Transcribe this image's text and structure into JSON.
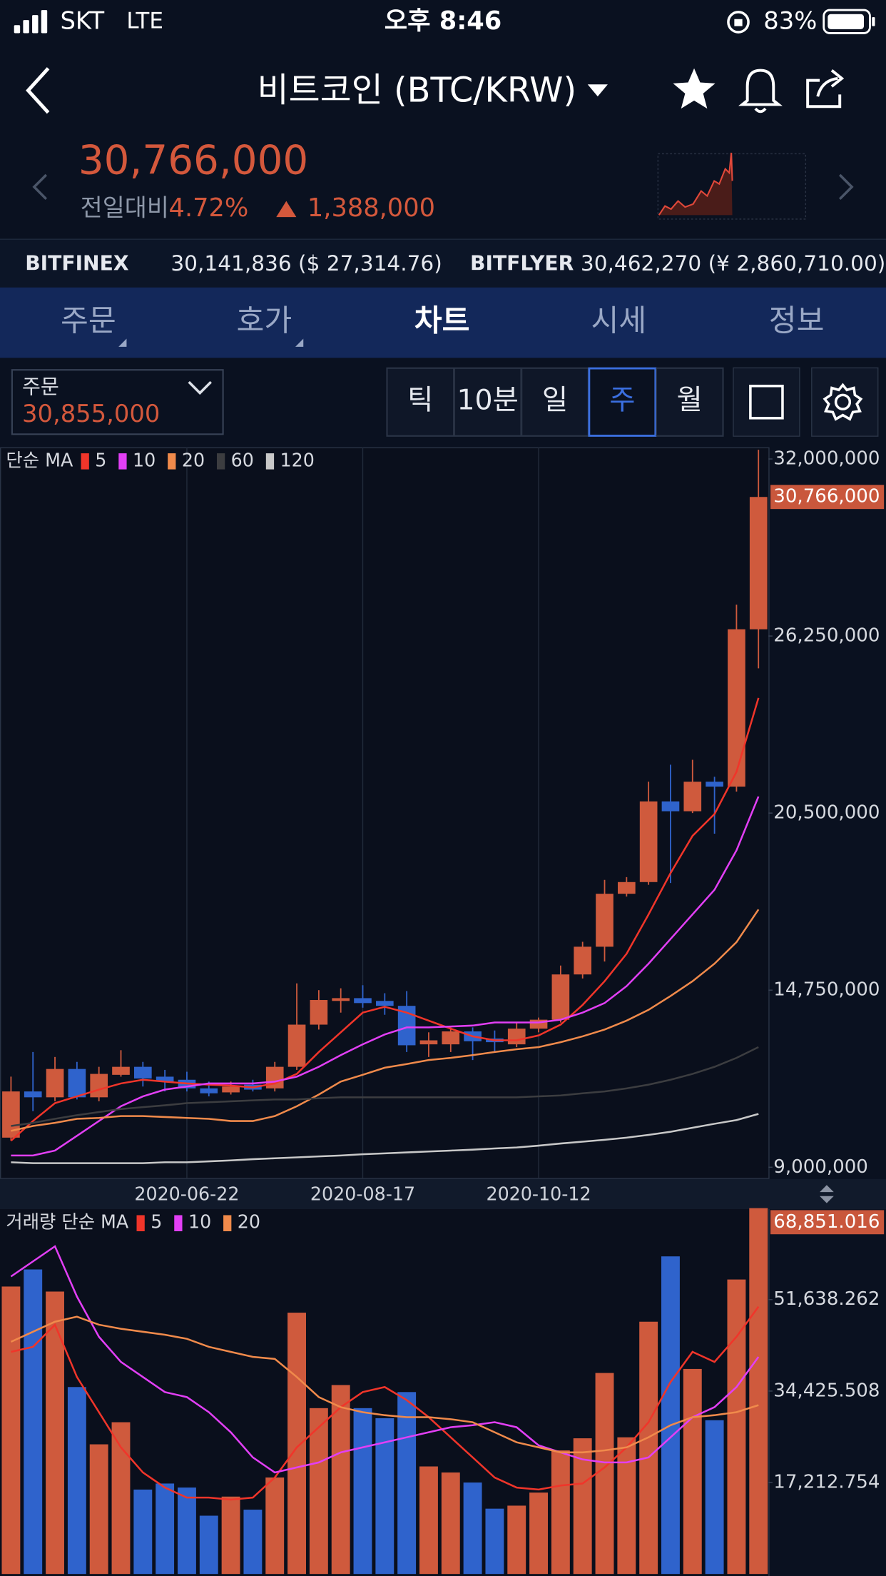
{
  "status_bar": {
    "carrier": "SKT",
    "network": "LTE",
    "time": "오후 8:46",
    "battery": "83%"
  },
  "header": {
    "title": "비트코인 (BTC/KRW)"
  },
  "price_panel": {
    "price": "30,766,000",
    "change_label": "전일대비",
    "change_percent": "4.72%",
    "change_amount": "1,388,000"
  },
  "exchanges": [
    {
      "name": "BITFINEX",
      "price": "30,141,836 ($ 27,314.76)"
    },
    {
      "name": "BITFLYER",
      "price": "30,462,270 (¥ 2,860,710.00)"
    }
  ],
  "tabs": [
    "주문",
    "호가",
    "차트",
    "시세",
    "정보"
  ],
  "active_tab": 2,
  "order_box": {
    "label": "주문",
    "price": "30,855,000"
  },
  "intervals": [
    "틱",
    "10분",
    "일",
    "주",
    "월"
  ],
  "active_interval": 3,
  "chart_data": [
    {
      "type": "candlestick",
      "legend_title": "단순 MA",
      "categories": [
        null,
        null,
        null,
        null,
        null,
        null,
        null,
        null,
        "2020-06-22",
        null,
        null,
        null,
        null,
        null,
        null,
        null,
        "2020-08-17",
        null,
        null,
        null,
        null,
        null,
        null,
        null,
        "2020-10-12",
        null,
        null,
        null,
        null,
        null,
        null,
        null,
        null,
        null,
        null
      ],
      "open": [
        9960000,
        11460000,
        11270000,
        12190000,
        11270000,
        12000000,
        12260000,
        11940000,
        11840000,
        11560000,
        11430000,
        11680000,
        11560000,
        12260000,
        13630000,
        14400000,
        14490000,
        14400000,
        14240000,
        12990000,
        12990000,
        13410000,
        13180000,
        12990000,
        13500000,
        13790000,
        15260000,
        16160000,
        17880000,
        18260000,
        20880000,
        20560000,
        21520000,
        21360000,
        26470000
      ],
      "high": [
        11940000,
        12740000,
        12580000,
        12420000,
        12260000,
        12800000,
        12420000,
        12160000,
        12100000,
        11780000,
        11780000,
        11840000,
        12420000,
        14970000,
        14750000,
        14810000,
        14910000,
        14650000,
        14720000,
        13380000,
        13540000,
        13540000,
        13440000,
        13700000,
        13860000,
        15550000,
        16320000,
        18330000,
        18420000,
        21520000,
        22070000,
        22230000,
        21680000,
        27270000,
        32300000
      ],
      "low": [
        9860000,
        10820000,
        11140000,
        11200000,
        11140000,
        11940000,
        11620000,
        11460000,
        11460000,
        11300000,
        11360000,
        11460000,
        11460000,
        12160000,
        13470000,
        14020000,
        14180000,
        13950000,
        12740000,
        12580000,
        12740000,
        12480000,
        12740000,
        12900000,
        13380000,
        13700000,
        15130000,
        15680000,
        17790000,
        18170000,
        18230000,
        20500000,
        19830000,
        21200000,
        25200000
      ],
      "close": [
        11460000,
        11270000,
        12190000,
        11270000,
        12030000,
        12260000,
        11880000,
        11780000,
        11560000,
        11400000,
        11620000,
        11520000,
        12260000,
        13630000,
        14430000,
        14490000,
        14330000,
        14240000,
        12960000,
        13120000,
        13410000,
        13090000,
        13060000,
        13500000,
        13790000,
        15260000,
        16160000,
        17880000,
        18260000,
        20880000,
        20560000,
        21520000,
        21360000,
        26470000,
        30766000
      ],
      "up_color": "#cf5a3d",
      "down_color": "#2f63cc",
      "series": [
        {
          "name": "5",
          "color": "#f0352a",
          "values": [
            9860000,
            10500000,
            11080000,
            11300000,
            11520000,
            11720000,
            11840000,
            11780000,
            11720000,
            11680000,
            11650000,
            11590000,
            11720000,
            12030000,
            12740000,
            13380000,
            14020000,
            14210000,
            14020000,
            13760000,
            13500000,
            13250000,
            13120000,
            13120000,
            13280000,
            13630000,
            14270000,
            15040000,
            15930000,
            17210000,
            18550000,
            19760000,
            20470000,
            21840000,
            24240000
          ]
        },
        {
          "name": "10",
          "color": "#e23ff5",
          "values": [
            9380000,
            9380000,
            9540000,
            10020000,
            10500000,
            10980000,
            11300000,
            11520000,
            11620000,
            11720000,
            11720000,
            11720000,
            11780000,
            11940000,
            12260000,
            12640000,
            12990000,
            13310000,
            13540000,
            13540000,
            13570000,
            13600000,
            13700000,
            13700000,
            13700000,
            13790000,
            14020000,
            14330000,
            14880000,
            15610000,
            16410000,
            17210000,
            18010000,
            19290000,
            21040000
          ]
        },
        {
          "name": "20",
          "color": "#f08a4b",
          "values": [
            10180000,
            10340000,
            10440000,
            10570000,
            10600000,
            10660000,
            10660000,
            10630000,
            10600000,
            10570000,
            10500000,
            10500000,
            10660000,
            10980000,
            11360000,
            11780000,
            12000000,
            12230000,
            12350000,
            12480000,
            12550000,
            12640000,
            12740000,
            12830000,
            12900000,
            13060000,
            13250000,
            13470000,
            13760000,
            14110000,
            14560000,
            15040000,
            15610000,
            16310000,
            17370000
          ]
        },
        {
          "name": "60",
          "color": "#3c3d40",
          "values": [
            10340000,
            10440000,
            10570000,
            10690000,
            10790000,
            10890000,
            10950000,
            11010000,
            11080000,
            11110000,
            11140000,
            11170000,
            11200000,
            11200000,
            11240000,
            11270000,
            11270000,
            11270000,
            11270000,
            11270000,
            11270000,
            11270000,
            11270000,
            11270000,
            11300000,
            11330000,
            11400000,
            11460000,
            11560000,
            11680000,
            11840000,
            12030000,
            12260000,
            12550000,
            12900000
          ]
        },
        {
          "name": "120",
          "color": "#c8c8c8",
          "values": [
            9160000,
            9130000,
            9130000,
            9130000,
            9130000,
            9130000,
            9130000,
            9160000,
            9160000,
            9190000,
            9220000,
            9260000,
            9290000,
            9320000,
            9350000,
            9380000,
            9420000,
            9450000,
            9480000,
            9510000,
            9540000,
            9570000,
            9610000,
            9640000,
            9700000,
            9770000,
            9830000,
            9890000,
            9960000,
            10050000,
            10150000,
            10280000,
            10410000,
            10530000,
            10730000
          ]
        }
      ],
      "ylim": [
        8650000,
        32380000
      ],
      "yticks": [
        {
          "value": 9000000,
          "label": "9,000,000"
        },
        {
          "value": 14750000,
          "label": "14,750,000"
        },
        {
          "value": 20500000,
          "label": "20,500,000"
        },
        {
          "value": 26250000,
          "label": "26,250,000"
        },
        {
          "value": 32000000,
          "label": "32,000,000"
        }
      ],
      "current": {
        "value": 30766000,
        "label": "30,766,000"
      },
      "xgrid": true
    },
    {
      "type": "bar",
      "legend_title": "거래량 단순 MA",
      "values": [
        54097,
        57312,
        53151,
        35182,
        24400,
        28562,
        15889,
        17024,
        16267,
        10971,
        14565,
        12106,
        18158,
        49179,
        31210,
        35560,
        31210,
        29318,
        34236,
        20239,
        19104,
        17213,
        12295,
        12862,
        15321,
        23265,
        25535,
        37830,
        25724,
        47477,
        59771,
        38587,
        28940,
        55421,
        68851.016
      ],
      "series": [
        {
          "name": "5",
          "color": "#f0352a",
          "values": [
            41802,
            42748,
            46909,
            37073,
            30453,
            23833,
            19104,
            16267,
            14375,
            14375,
            13997,
            14375,
            18158,
            23833,
            27616,
            31399,
            34236,
            35182,
            32723,
            29507,
            25724,
            21941,
            18158,
            16267,
            15889,
            16645,
            17024,
            20050,
            23833,
            28562,
            36128,
            41802,
            39911,
            44639,
            50314
          ]
        },
        {
          "name": "10",
          "color": "#e23ff5",
          "values": [
            55988,
            58826,
            61663,
            52205,
            44639,
            39911,
            37073,
            34236,
            33290,
            30453,
            26670,
            21941,
            19104,
            20050,
            20996,
            22887,
            23833,
            24779,
            25724,
            26670,
            27616,
            27994,
            28562,
            27616,
            24211,
            22887,
            21563,
            20996,
            20996,
            21941,
            25724,
            29507,
            31399,
            35182,
            40856
          ]
        },
        {
          "name": "20",
          "color": "#f08a4b",
          "values": [
            43694,
            45585,
            47477,
            48422,
            46909,
            46153,
            45585,
            45018,
            44261,
            42748,
            41802,
            40856,
            40478,
            37073,
            33290,
            31399,
            30453,
            29886,
            29507,
            29507,
            29129,
            28562,
            26670,
            24779,
            23833,
            22887,
            22887,
            23265,
            23833,
            25724,
            27994,
            29507,
            29886,
            30453,
            31777
          ]
        }
      ],
      "ylim": [
        0,
        68851.016
      ],
      "yticks": [
        {
          "value": 17212.754,
          "label": "17,212.754"
        },
        {
          "value": 34425.508,
          "label": "34,425.508"
        },
        {
          "value": 51638.262,
          "label": "51,638.262"
        }
      ],
      "current": {
        "value": 68851.016,
        "label": "68,851.016"
      }
    }
  ]
}
